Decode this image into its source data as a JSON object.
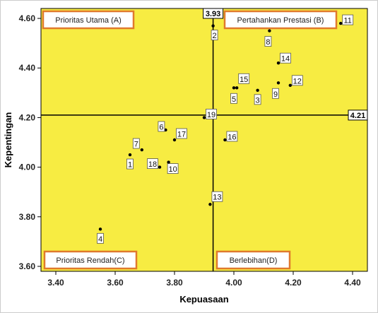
{
  "chart_data": {
    "type": "scatter",
    "title": "",
    "xlabel": "Kepuasaan",
    "ylabel": "Kepentingan",
    "xlim": [
      3.35,
      4.45
    ],
    "ylim": [
      3.58,
      4.64
    ],
    "x_ticks": [
      "3.40",
      "3.60",
      "3.80",
      "4.00",
      "4.20",
      "4.40"
    ],
    "y_ticks": [
      "3.60",
      "3.80",
      "4.00",
      "4.20",
      "4.40",
      "4.60"
    ],
    "tick_values_x": [
      3.4,
      3.6,
      3.8,
      4.0,
      4.2,
      4.4
    ],
    "tick_values_y": [
      3.6,
      3.8,
      4.0,
      4.2,
      4.4,
      4.6
    ],
    "reference_lines": {
      "x": {
        "value": 3.93,
        "label": "3.93"
      },
      "y": {
        "value": 4.21,
        "label": "4.21"
      }
    },
    "quadrants": [
      {
        "id": "A",
        "label": "Prioritas Utama (A)",
        "position": "top-left"
      },
      {
        "id": "B",
        "label": "Pertahankan Prestasi (B)",
        "position": "top-right"
      },
      {
        "id": "C",
        "label": "Prioritas Rendah(C)",
        "position": "bottom-left"
      },
      {
        "id": "D",
        "label": "Berlebihan(D)",
        "position": "bottom-right"
      }
    ],
    "points": [
      {
        "label": "1",
        "x": 3.65,
        "y": 4.05
      },
      {
        "label": "2",
        "x": 3.93,
        "y": 4.57
      },
      {
        "label": "3",
        "x": 4.08,
        "y": 4.31
      },
      {
        "label": "4",
        "x": 3.55,
        "y": 3.75
      },
      {
        "label": "5",
        "x": 4.0,
        "y": 4.32
      },
      {
        "label": "6",
        "x": 3.77,
        "y": 4.15
      },
      {
        "label": "7",
        "x": 3.69,
        "y": 4.07
      },
      {
        "label": "8",
        "x": 4.12,
        "y": 4.55
      },
      {
        "label": "9",
        "x": 4.15,
        "y": 4.34
      },
      {
        "label": "10",
        "x": 3.78,
        "y": 4.02
      },
      {
        "label": "11",
        "x": 4.36,
        "y": 4.58
      },
      {
        "label": "12",
        "x": 4.19,
        "y": 4.33
      },
      {
        "label": "13",
        "x": 3.92,
        "y": 3.85
      },
      {
        "label": "14",
        "x": 4.15,
        "y": 4.42
      },
      {
        "label": "15",
        "x": 4.01,
        "y": 4.32
      },
      {
        "label": "16",
        "x": 3.97,
        "y": 4.11
      },
      {
        "label": "17",
        "x": 3.8,
        "y": 4.11
      },
      {
        "label": "18",
        "x": 3.75,
        "y": 4.0
      },
      {
        "label": "19",
        "x": 3.9,
        "y": 4.2
      }
    ],
    "grid": false,
    "legend": "none",
    "colors": {
      "plot_background": "#f7ec42",
      "quadrant_border": "#e07a2c",
      "axis": "#000000",
      "point": "#000000"
    }
  }
}
